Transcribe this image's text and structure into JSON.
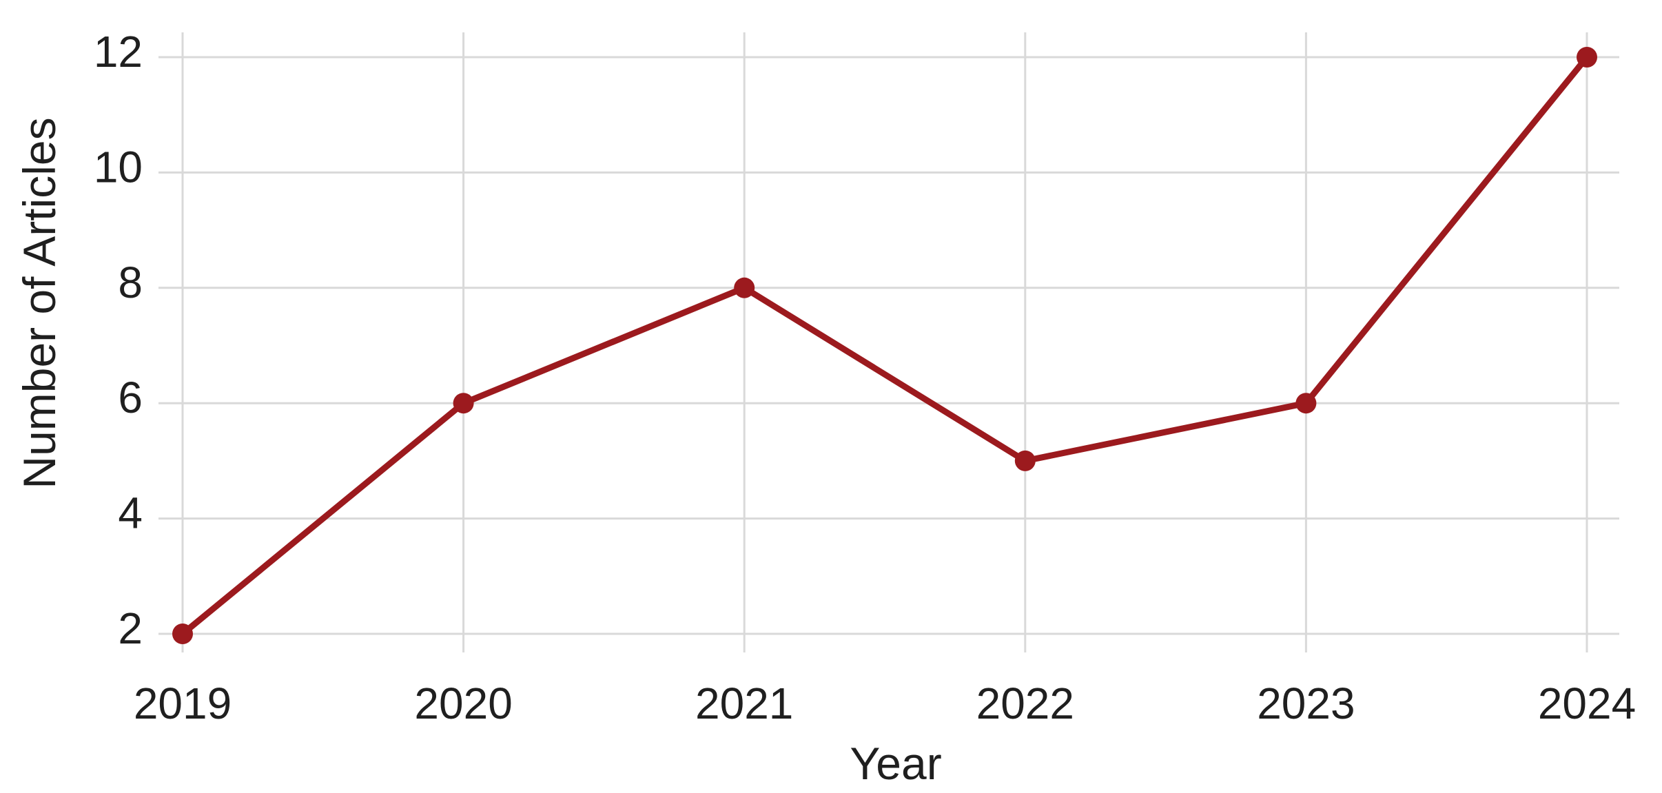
{
  "chart_data": {
    "type": "line",
    "title": "",
    "categories": [
      "2019",
      "2020",
      "2021",
      "2022",
      "2023",
      "2024"
    ],
    "series": [
      {
        "name": "Number of Articles",
        "values": [
          2,
          6,
          8,
          5,
          6,
          12
        ]
      }
    ],
    "xlabel": "Year",
    "ylabel": "Number of Articles",
    "yticks": [
      2,
      4,
      6,
      8,
      10,
      12
    ],
    "ylim": [
      2,
      12
    ],
    "grid": true,
    "legend_position": "none",
    "marker": "circle",
    "colors": {
      "line": "#9C1A1E",
      "marker": "#9C1A1E",
      "gridline": "#D9D9D9",
      "tick_text": "#1f1f1f",
      "background": "#ffffff"
    }
  }
}
